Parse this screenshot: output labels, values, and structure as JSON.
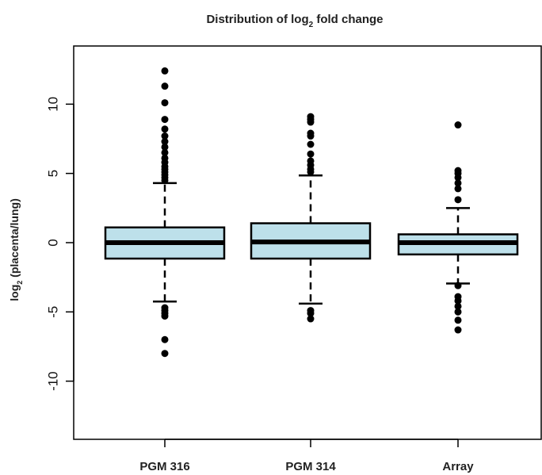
{
  "chart_data": {
    "type": "boxplot",
    "title_prefix": "Distribution of log",
    "title_sub": "2",
    "title_suffix": " fold change",
    "ylabel_prefix": "log",
    "ylabel_sub": "2",
    "ylabel_suffix": " (placenta/lung)",
    "xlabel": "",
    "ylim": [
      -14.2,
      14.2
    ],
    "yticks": [
      -10,
      -5,
      0,
      5,
      10
    ],
    "ytick_labels": [
      "-10",
      "-5",
      "0",
      "5",
      "10"
    ],
    "grid": false,
    "box_fill": "#bde0ea",
    "box_stroke": "#000000",
    "outlier_color": "#000000",
    "categories": [
      "PGM 316",
      "PGM 314",
      "Array"
    ],
    "boxes": [
      {
        "label": "PGM 316",
        "q1": -1.15,
        "median": 0.0,
        "q3": 1.1,
        "whisker_low": -4.25,
        "whisker_high": 4.3,
        "outliers": [
          12.4,
          11.3,
          10.1,
          8.9,
          8.2,
          7.7,
          7.3,
          6.9,
          6.5,
          6.1,
          5.8,
          5.5,
          5.3,
          5.1,
          4.9,
          4.7,
          4.5,
          -4.7,
          -4.9,
          -5.1,
          -5.3,
          -7.0,
          -8.0
        ]
      },
      {
        "label": "PGM 314",
        "q1": -1.15,
        "median": 0.05,
        "q3": 1.4,
        "whisker_low": -4.4,
        "whisker_high": 4.85,
        "outliers": [
          9.1,
          8.9,
          8.7,
          7.9,
          7.7,
          7.1,
          6.4,
          5.9,
          5.6,
          5.3,
          5.1,
          -4.9,
          -5.1,
          -5.5
        ]
      },
      {
        "label": "Array",
        "q1": -0.85,
        "median": 0.0,
        "q3": 0.6,
        "whisker_low": -2.95,
        "whisker_high": 2.5,
        "outliers": [
          8.5,
          5.2,
          5.0,
          4.7,
          4.3,
          3.9,
          3.1,
          -3.1,
          -3.9,
          -4.2,
          -4.6,
          -5.0,
          -5.6,
          -6.3
        ]
      }
    ]
  }
}
